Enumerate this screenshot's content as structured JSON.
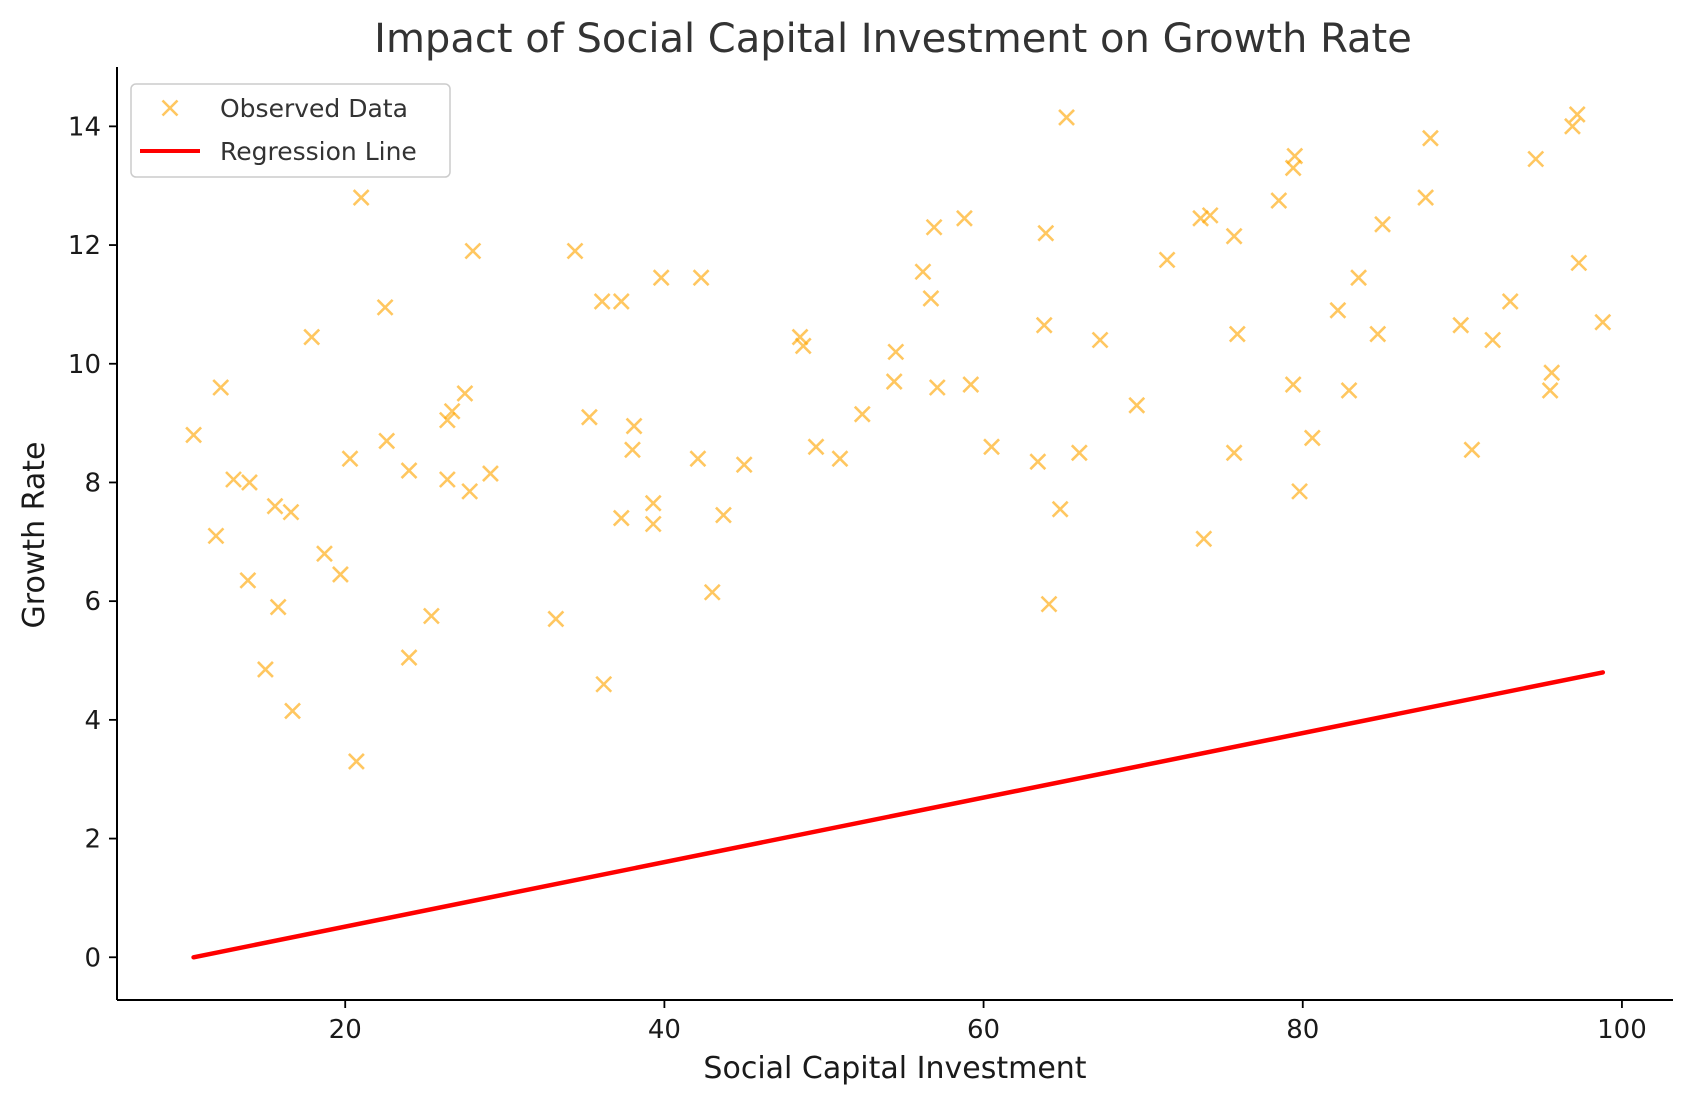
{
  "chart_data": {
    "type": "scatter",
    "title": "Impact of Social Capital Investment on Growth Rate",
    "xlabel": "Social Capital Investment",
    "ylabel": "Growth Rate",
    "xlim": [
      5.7,
      103.2
    ],
    "ylim": [
      -0.72,
      15.0
    ],
    "xticks": [
      20,
      40,
      60,
      80,
      100
    ],
    "yticks": [
      0,
      2,
      4,
      6,
      8,
      10,
      12,
      14
    ],
    "grid": false,
    "legend_position": "top-left",
    "series": [
      {
        "name": "Observed Data",
        "kind": "scatter",
        "marker": "x",
        "color": "#FFA500",
        "points": [
          [
            10.5,
            8.8
          ],
          [
            11.9,
            7.1
          ],
          [
            12.2,
            9.6
          ],
          [
            13.0,
            8.05
          ],
          [
            14.0,
            8.0
          ],
          [
            13.9,
            6.35
          ],
          [
            15.0,
            4.85
          ],
          [
            15.6,
            7.6
          ],
          [
            15.8,
            5.9
          ],
          [
            16.6,
            7.5
          ],
          [
            16.7,
            4.15
          ],
          [
            17.9,
            10.45
          ],
          [
            18.7,
            6.8
          ],
          [
            19.7,
            6.45
          ],
          [
            20.3,
            8.4
          ],
          [
            20.7,
            3.3
          ],
          [
            21.0,
            12.8
          ],
          [
            22.5,
            10.95
          ],
          [
            22.6,
            8.7
          ],
          [
            24.0,
            8.2
          ],
          [
            24.0,
            5.05
          ],
          [
            25.4,
            5.75
          ],
          [
            26.4,
            9.05
          ],
          [
            26.7,
            9.2
          ],
          [
            26.4,
            8.05
          ],
          [
            27.5,
            9.5
          ],
          [
            27.8,
            7.85
          ],
          [
            28.0,
            11.9
          ],
          [
            29.1,
            8.15
          ],
          [
            33.2,
            5.7
          ],
          [
            34.4,
            11.9
          ],
          [
            35.3,
            9.1
          ],
          [
            36.1,
            11.05
          ],
          [
            36.2,
            4.6
          ],
          [
            37.3,
            11.05
          ],
          [
            37.3,
            7.4
          ],
          [
            38.1,
            8.95
          ],
          [
            38.0,
            8.55
          ],
          [
            39.3,
            7.65
          ],
          [
            39.3,
            7.3
          ],
          [
            39.8,
            11.45
          ],
          [
            42.1,
            8.4
          ],
          [
            42.3,
            11.45
          ],
          [
            43.0,
            6.15
          ],
          [
            43.7,
            7.45
          ],
          [
            45.0,
            8.3
          ],
          [
            48.5,
            10.45
          ],
          [
            48.7,
            10.3
          ],
          [
            49.5,
            8.6
          ],
          [
            51.0,
            8.4
          ],
          [
            52.4,
            9.15
          ],
          [
            54.4,
            9.7
          ],
          [
            54.5,
            10.2
          ],
          [
            56.2,
            11.55
          ],
          [
            56.7,
            11.1
          ],
          [
            56.9,
            12.3
          ],
          [
            57.1,
            9.6
          ],
          [
            58.8,
            12.45
          ],
          [
            59.2,
            9.65
          ],
          [
            60.5,
            8.6
          ],
          [
            63.4,
            8.35
          ],
          [
            63.8,
            10.65
          ],
          [
            63.9,
            12.2
          ],
          [
            64.1,
            5.95
          ],
          [
            64.8,
            7.55
          ],
          [
            65.2,
            14.15
          ],
          [
            66.0,
            8.5
          ],
          [
            67.3,
            10.4
          ],
          [
            69.6,
            9.3
          ],
          [
            71.5,
            11.75
          ],
          [
            73.6,
            12.45
          ],
          [
            73.8,
            7.05
          ],
          [
            74.2,
            12.5
          ],
          [
            75.7,
            12.15
          ],
          [
            75.9,
            10.5
          ],
          [
            75.7,
            8.5
          ],
          [
            78.5,
            12.75
          ],
          [
            79.4,
            13.3
          ],
          [
            79.5,
            13.5
          ],
          [
            79.4,
            9.65
          ],
          [
            79.8,
            7.85
          ],
          [
            80.6,
            8.75
          ],
          [
            82.2,
            10.9
          ],
          [
            82.9,
            9.55
          ],
          [
            83.5,
            11.45
          ],
          [
            84.7,
            10.5
          ],
          [
            85.0,
            12.35
          ],
          [
            87.7,
            12.8
          ],
          [
            88.0,
            13.8
          ],
          [
            89.9,
            10.65
          ],
          [
            90.6,
            8.55
          ],
          [
            91.9,
            10.4
          ],
          [
            93.0,
            11.05
          ],
          [
            94.6,
            13.45
          ],
          [
            95.5,
            9.55
          ],
          [
            95.6,
            9.85
          ],
          [
            96.9,
            14.0
          ],
          [
            97.2,
            14.2
          ],
          [
            97.3,
            11.7
          ],
          [
            98.8,
            10.7
          ]
        ]
      },
      {
        "name": "Regression Line",
        "kind": "line",
        "color": "#FF0000",
        "points": [
          [
            10.5,
            0.0
          ],
          [
            98.8,
            4.8
          ]
        ]
      }
    ]
  }
}
